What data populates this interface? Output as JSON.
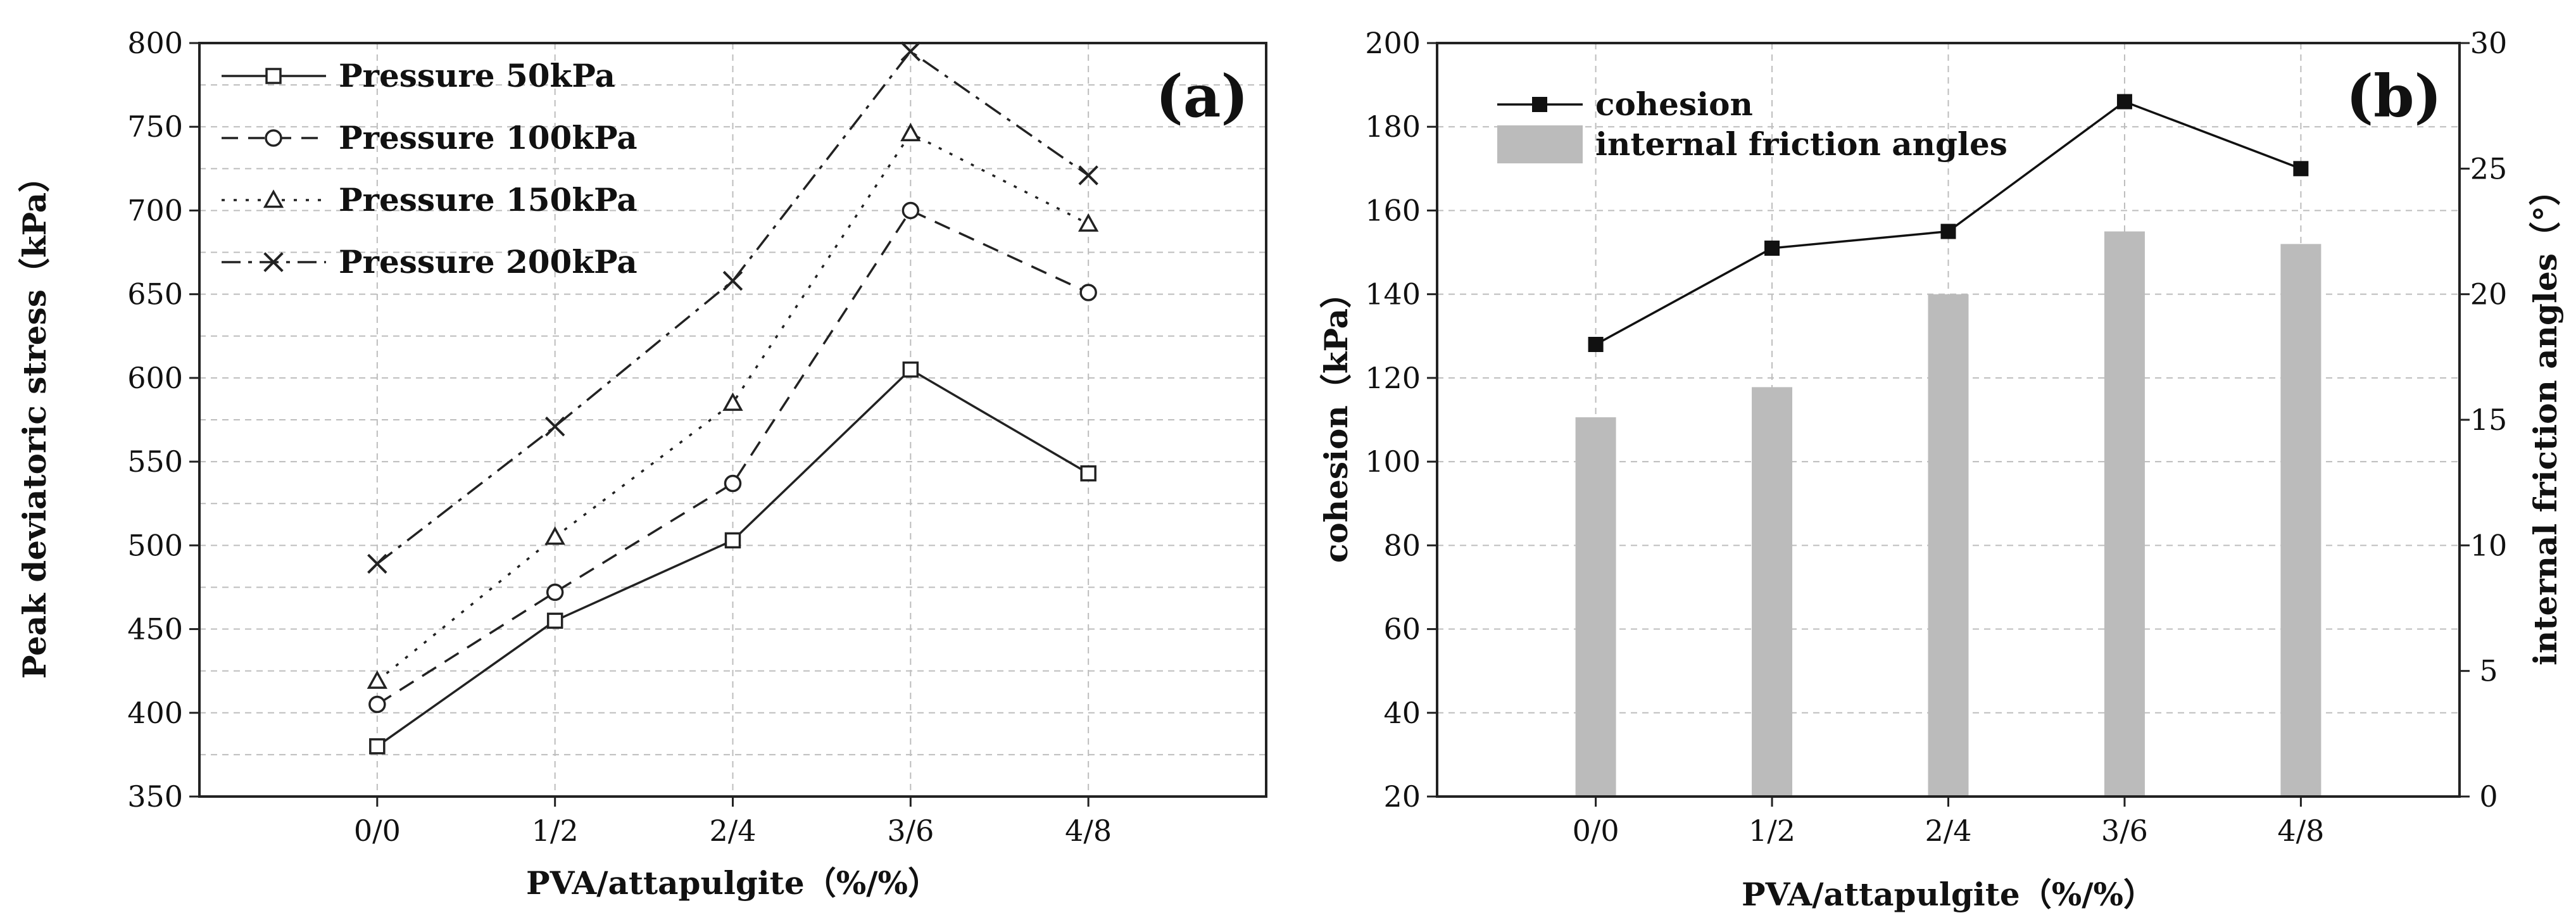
{
  "chart_data": [
    {
      "id": "a",
      "type": "line",
      "panel_label": "(a)",
      "categories": [
        "0/0",
        "1/2",
        "2/4",
        "3/6",
        "4/8"
      ],
      "xlabel": "PVA/attapulgite（%/%）",
      "ylabel": "Peak deviatoric stress（kPa）",
      "ylim": [
        350,
        800
      ],
      "yticks": [
        350,
        400,
        450,
        500,
        550,
        600,
        650,
        700,
        750,
        800
      ],
      "grid": true,
      "legend_position": "top-left",
      "series": [
        {
          "name": "Pressure 50kPa",
          "values": [
            380,
            455,
            503,
            605,
            543
          ],
          "marker": "square",
          "dash": "solid",
          "color": "#222222"
        },
        {
          "name": "Pressure 100kPa",
          "values": [
            405,
            472,
            537,
            700,
            651
          ],
          "marker": "circle",
          "dash": "dashed",
          "color": "#222222"
        },
        {
          "name": "Pressure 150kPa",
          "values": [
            419,
            505,
            585,
            746,
            692
          ],
          "marker": "triangle",
          "dash": "dotted",
          "color": "#222222"
        },
        {
          "name": "Pressure 200kPa",
          "values": [
            489,
            571,
            658,
            795,
            721
          ],
          "marker": "cross",
          "dash": "dash-dot",
          "color": "#222222"
        }
      ]
    },
    {
      "id": "b",
      "type": "bar",
      "panel_label": "(b)",
      "categories": [
        "0/0",
        "1/2",
        "2/4",
        "3/6",
        "4/8"
      ],
      "xlabel": "PVA/attapulgite（%/%）",
      "ylabel": "cohesion（kPa）",
      "ylabel_right": "internal friction angles（°）",
      "ylim": [
        20,
        200
      ],
      "yticks": [
        20,
        40,
        60,
        80,
        100,
        120,
        140,
        160,
        180,
        200
      ],
      "ylim_right": [
        0,
        30
      ],
      "yticks_right": [
        0,
        5,
        10,
        15,
        20,
        25,
        30
      ],
      "grid": true,
      "legend_position": "top-left",
      "series": [
        {
          "name": "cohesion",
          "type": "line",
          "axis": "left",
          "values": [
            128,
            151,
            155,
            186,
            170
          ],
          "marker": "filled-square",
          "color": "#111111"
        },
        {
          "name": "internal friction angles",
          "type": "bar",
          "axis": "right",
          "values": [
            15.1,
            16.3,
            20.0,
            22.5,
            22.0
          ],
          "color": "#bbbbbb"
        }
      ]
    }
  ]
}
